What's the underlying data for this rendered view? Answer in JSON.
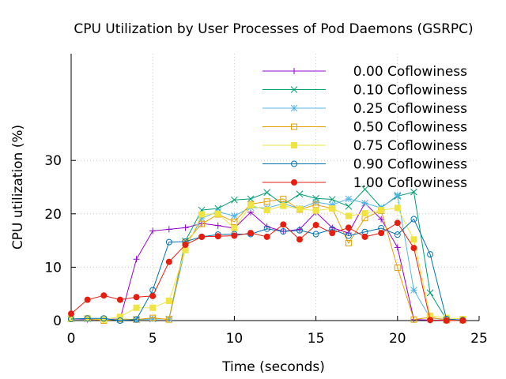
{
  "chart_data": {
    "type": "line",
    "title": "CPU Utilization by User Processes of Pod Daemons (GSRPC)",
    "xlabel": "Time (seconds)",
    "ylabel": "CPU utilization (%)",
    "xlim": [
      0,
      25
    ],
    "ylim": [
      0,
      50
    ],
    "xticks": [
      0,
      5,
      10,
      15,
      20,
      25
    ],
    "yticks": [
      0,
      10,
      20,
      30
    ],
    "grid": true,
    "legend_position": "top-right",
    "x": [
      0,
      1,
      2,
      3,
      4,
      5,
      6,
      7,
      8,
      9,
      10,
      11,
      12,
      13,
      14,
      15,
      16,
      17,
      18,
      19,
      20,
      21,
      22,
      23,
      24
    ],
    "series": [
      {
        "name": "0.00 Coflowiness",
        "color": "#9400d3",
        "marker": "plus",
        "values": [
          0.3,
          0.2,
          0.2,
          0.3,
          11.5,
          16.8,
          17.1,
          17.4,
          18.2,
          17.8,
          17.3,
          20.3,
          17.6,
          16.7,
          17.1,
          20.3,
          17.4,
          16.4,
          22.0,
          19.0,
          13.7,
          0.2,
          0.1,
          0.1,
          0.1
        ]
      },
      {
        "name": "0.10 Coflowiness",
        "color": "#009e73",
        "marker": "cross",
        "values": [
          0.3,
          0.3,
          0.2,
          0.2,
          0.2,
          0.3,
          0.3,
          14.9,
          20.7,
          21.0,
          22.6,
          22.8,
          24.0,
          21.7,
          23.7,
          22.9,
          22.7,
          21.4,
          24.6,
          21.2,
          23.3,
          24.1,
          5.2,
          0.2,
          0.1
        ]
      },
      {
        "name": "0.25 Coflowiness",
        "color": "#56b4e9",
        "marker": "star",
        "values": [
          0.3,
          0.3,
          0.2,
          0.2,
          0.2,
          0.3,
          0.3,
          13.6,
          19.2,
          20.4,
          19.6,
          21.2,
          21.1,
          21.9,
          21.0,
          22.2,
          21.7,
          22.8,
          22.0,
          21.1,
          23.5,
          5.7,
          0.5,
          0.2,
          0.1
        ]
      },
      {
        "name": "0.50 Coflowiness",
        "color": "#e69f00",
        "marker": "square",
        "values": [
          0.3,
          0.4,
          0.0,
          0.3,
          0.2,
          0.5,
          0.2,
          14.6,
          18.1,
          19.9,
          18.5,
          21.8,
          22.3,
          22.8,
          20.8,
          21.7,
          21.0,
          14.5,
          19.2,
          20.6,
          9.9,
          0.2,
          0.6,
          0.1,
          0.1
        ]
      },
      {
        "name": "0.75 Coflowiness",
        "color": "#f0e442",
        "marker": "filled-square",
        "values": [
          0.3,
          0.4,
          0.2,
          0.7,
          2.4,
          2.4,
          3.7,
          13.2,
          19.9,
          20.0,
          17.3,
          21.6,
          20.7,
          21.5,
          20.9,
          20.6,
          21.0,
          19.6,
          20.1,
          20.7,
          21.1,
          15.2,
          0.9,
          0.5,
          0.3
        ]
      },
      {
        "name": "0.90 Coflowiness",
        "color": "#0072b2",
        "marker": "circle",
        "values": [
          0.3,
          0.4,
          0.4,
          0.0,
          0.2,
          5.7,
          14.7,
          14.8,
          15.7,
          16.1,
          16.2,
          16.2,
          17.2,
          16.7,
          16.9,
          16.2,
          17.1,
          15.9,
          16.6,
          17.3,
          16.1,
          19.0,
          12.4,
          0.3,
          0.1
        ]
      },
      {
        "name": "1.00 Coflowiness",
        "color": "#e51e10",
        "marker": "filled-circle",
        "values": [
          1.3,
          3.9,
          4.7,
          3.9,
          4.4,
          4.6,
          11.0,
          14.2,
          15.7,
          15.8,
          15.9,
          16.4,
          15.7,
          18.0,
          15.2,
          17.9,
          16.4,
          17.4,
          15.7,
          16.4,
          18.3,
          13.6,
          0.1,
          0.0,
          0.0
        ]
      }
    ]
  }
}
